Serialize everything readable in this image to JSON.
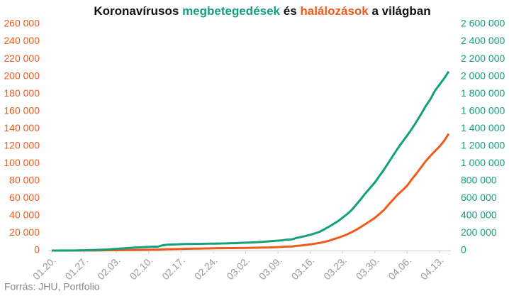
{
  "chart_data": {
    "type": "line",
    "title": [
      "Koronavírusos ",
      "megbetegedések",
      " és ",
      "halálozások",
      " a világban"
    ],
    "title_colors": [
      "#111111",
      "#13a07b",
      "#111111",
      "#f05a1c",
      "#111111"
    ],
    "source": "Forrás: JHU, Portfolio",
    "categories": [
      "01.20.",
      null,
      null,
      null,
      null,
      null,
      null,
      "01.27.",
      null,
      null,
      null,
      null,
      null,
      null,
      "02.03.",
      null,
      null,
      null,
      null,
      null,
      null,
      "02.10.",
      null,
      null,
      null,
      null,
      null,
      null,
      "02.17.",
      null,
      null,
      null,
      null,
      null,
      null,
      "02.24.",
      null,
      null,
      null,
      null,
      null,
      null,
      "03.02.",
      null,
      null,
      null,
      null,
      null,
      null,
      "03.09.",
      null,
      null,
      null,
      null,
      null,
      null,
      "03.16.",
      null,
      null,
      null,
      null,
      null,
      null,
      "03.23.",
      null,
      null,
      null,
      null,
      null,
      null,
      "03.30.",
      null,
      null,
      null,
      null,
      null,
      null,
      "04.06.",
      null,
      null,
      null,
      null,
      null,
      null,
      "04.13.",
      null,
      null
    ],
    "series": [
      {
        "name": "halálozások",
        "color": "#f05a1c",
        "axis": "y",
        "values": [
          6,
          6,
          17,
          18,
          26,
          42,
          56,
          82,
          131,
          133,
          171,
          213,
          259,
          362,
          426,
          492,
          564,
          634,
          719,
          806,
          906,
          1013,
          1113,
          1118,
          1371,
          1523,
          1666,
          1770,
          1868,
          2007,
          2122,
          2247,
          2251,
          2458,
          2469,
          2629,
          2708,
          2770,
          2814,
          2872,
          2941,
          2996,
          3085,
          3160,
          3254,
          3348,
          3460,
          3558,
          3802,
          3988,
          4262,
          4615,
          4720,
          5404,
          5819,
          6440,
          7126,
          7905,
          8733,
          9867,
          11299,
          12973,
          14651,
          16505,
          18625,
          21181,
          23970,
          27198,
          30652,
          33925,
          37582,
          42107,
          46809,
          52983,
          58787,
          64606,
          69374,
          74565,
          81865,
          88338,
          95455,
          102525,
          108503,
          114091,
          119482,
          125984,
          134177
        ]
      },
      {
        "name": "megbetegedések",
        "color": "#13a07b",
        "axis": "y2",
        "values": [
          282,
          314,
          555,
          654,
          941,
          1434,
          2118,
          2927,
          5578,
          6167,
          8235,
          9927,
          12038,
          16787,
          19887,
          23898,
          27643,
          30802,
          34395,
          37129,
          40159,
          42762,
          44802,
          45221,
          60368,
          66885,
          69030,
          71224,
          73258,
          75136,
          75639,
          76197,
          76819,
          78572,
          78958,
          79561,
          80406,
          81388,
          82746,
          84112,
          86011,
          88369,
          90306,
          92840,
          95120,
          97886,
          101801,
          105847,
          109821,
          113590,
          118620,
          125875,
          128352,
          145205,
          156101,
          167454,
          181574,
          197102,
          214821,
          242570,
          272208,
          304507,
          336953,
          378235,
          418045,
          467653,
          529591,
          593291,
          660706,
          720117,
          782365,
          857487,
          932605,
          1013157,
          1095917,
          1176060,
          1249754,
          1321481,
          1396476,
          1480202,
          1565278,
          1657526,
          1735650,
          1834721,
          1904838,
          1976191,
          2056054
        ]
      }
    ],
    "ylim": [
      0,
      260000
    ],
    "yticks": [
      0,
      {
        "value": 20000,
        "label": "20 000"
      },
      {
        "value": 40000,
        "label": "40 000"
      },
      {
        "value": 60000,
        "label": "60 000"
      },
      {
        "value": 80000,
        "label": "80 000"
      },
      {
        "value": 100000,
        "label": "100 000"
      },
      {
        "value": 120000,
        "label": "120 000"
      },
      {
        "value": 140000,
        "label": "140 000"
      },
      {
        "value": 160000,
        "label": "160 000"
      },
      {
        "value": 180000,
        "label": "180 000"
      },
      {
        "value": 200000,
        "label": "200 000"
      },
      {
        "value": 220000,
        "label": "220 000"
      },
      {
        "value": 240000,
        "label": "240 000"
      },
      {
        "value": 260000,
        "label": "260 000"
      }
    ],
    "y2lim": [
      0,
      2600000
    ],
    "y2ticks": [
      0,
      {
        "value": 200000,
        "label": "200 000"
      },
      {
        "value": 400000,
        "label": "400 000"
      },
      {
        "value": 600000,
        "label": "600 000"
      },
      {
        "value": 800000,
        "label": "800 000"
      },
      {
        "value": 1000000,
        "label": "1 000 000"
      },
      {
        "value": 1200000,
        "label": "1 200 000"
      },
      {
        "value": 1400000,
        "label": "1 400 000"
      },
      {
        "value": 1600000,
        "label": "1 600 000"
      },
      {
        "value": 1800000,
        "label": "1 800 000"
      },
      {
        "value": 2000000,
        "label": "2 000 000"
      },
      {
        "value": 2200000,
        "label": "2 200 000"
      },
      {
        "value": 2400000,
        "label": "2 400 000"
      },
      {
        "value": 2600000,
        "label": "2 600 000"
      }
    ],
    "grid": false
  }
}
